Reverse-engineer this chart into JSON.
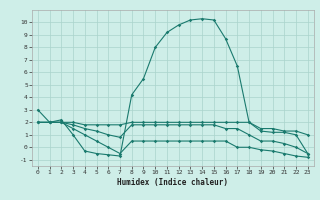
{
  "xlabel": "Humidex (Indice chaleur)",
  "ylabel": "",
  "xlim": [
    -0.5,
    23.5
  ],
  "ylim": [
    -1.5,
    11
  ],
  "yticks": [
    -1,
    0,
    1,
    2,
    3,
    4,
    5,
    6,
    7,
    8,
    9,
    10
  ],
  "xticks": [
    0,
    1,
    2,
    3,
    4,
    5,
    6,
    7,
    8,
    9,
    10,
    11,
    12,
    13,
    14,
    15,
    16,
    17,
    18,
    19,
    20,
    21,
    22,
    23
  ],
  "background_color": "#ceeee8",
  "grid_color": "#aad4cc",
  "line_color": "#1a7a6e",
  "line1_x": [
    0,
    1,
    2,
    3,
    4,
    5,
    6,
    7,
    8,
    9,
    10,
    11,
    12,
    13,
    14,
    15,
    16,
    17,
    18,
    19,
    20,
    21,
    22,
    23
  ],
  "line1_y": [
    3.0,
    2.0,
    2.2,
    1.0,
    -0.3,
    -0.5,
    -0.6,
    -0.7,
    4.2,
    5.5,
    8.0,
    9.2,
    9.8,
    10.2,
    10.3,
    10.2,
    8.7,
    6.5,
    2.0,
    1.3,
    1.2,
    1.2,
    1.0,
    -0.5
  ],
  "line2_x": [
    0,
    1,
    2,
    3,
    4,
    5,
    6,
    7,
    8,
    9,
    10,
    11,
    12,
    13,
    14,
    15,
    16,
    17,
    18,
    19,
    20,
    21,
    22,
    23
  ],
  "line2_y": [
    2.0,
    2.0,
    2.0,
    2.0,
    1.8,
    1.8,
    1.8,
    1.8,
    2.0,
    2.0,
    2.0,
    2.0,
    2.0,
    2.0,
    2.0,
    2.0,
    2.0,
    2.0,
    2.0,
    1.5,
    1.5,
    1.3,
    1.3,
    1.0
  ],
  "line3_x": [
    0,
    1,
    2,
    3,
    4,
    5,
    6,
    7,
    8,
    9,
    10,
    11,
    12,
    13,
    14,
    15,
    16,
    17,
    18,
    19,
    20,
    21,
    22,
    23
  ],
  "line3_y": [
    2.0,
    2.0,
    2.0,
    1.8,
    1.5,
    1.3,
    1.0,
    0.8,
    1.8,
    1.8,
    1.8,
    1.8,
    1.8,
    1.8,
    1.8,
    1.8,
    1.5,
    1.5,
    1.0,
    0.5,
    0.5,
    0.3,
    0.0,
    -0.5
  ],
  "line4_x": [
    0,
    1,
    2,
    3,
    4,
    5,
    6,
    7,
    8,
    9,
    10,
    11,
    12,
    13,
    14,
    15,
    16,
    17,
    18,
    19,
    20,
    21,
    22,
    23
  ],
  "line4_y": [
    2.0,
    2.0,
    2.0,
    1.5,
    1.0,
    0.5,
    0.0,
    -0.5,
    0.5,
    0.5,
    0.5,
    0.5,
    0.5,
    0.5,
    0.5,
    0.5,
    0.5,
    0.0,
    0.0,
    -0.2,
    -0.3,
    -0.5,
    -0.7,
    -0.8
  ]
}
